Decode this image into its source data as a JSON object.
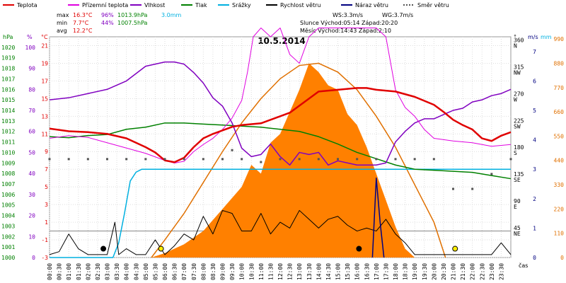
{
  "chart_data": {
    "type": "line",
    "title": "10.5.2014",
    "legend": [
      {
        "label": "Teplota",
        "color": "#e00000"
      },
      {
        "label": "Přízemní teplota",
        "color": "#e000e0"
      },
      {
        "label": "Vlhkost",
        "color": "#8000c0"
      },
      {
        "label": "Tlak",
        "color": "#008000"
      },
      {
        "label": "Srážky",
        "color": "#00b0e0"
      },
      {
        "label": "Rychlost větru",
        "color": "#000000"
      },
      {
        "label": "Náraz větru",
        "color": "#000080"
      },
      {
        "label": "Směr větru",
        "color": "#555555"
      }
    ],
    "stats": {
      "max_label": "max",
      "max_temp": "16.3°C",
      "max_hum": "96%",
      "max_press": "1013.9hPa",
      "rain": "3.0mm",
      "min_label": "min",
      "min_temp": "7.7°C",
      "min_hum": "44%",
      "min_press": "1007.5hPa",
      "avg_label": "avg",
      "avg_temp": "12.2°C",
      "ws": "WS:3.3m/s",
      "wg": "WG:3.7m/s",
      "sun": "Slunce Východ:05:14  Západ:20:20",
      "moon": "Měsíc  Východ:14:43  Západ:2:10"
    },
    "axes": {
      "hpa_label": "hPa",
      "pct_label": "%",
      "temp_label": "°C",
      "deg_label": "°",
      "ms_label": "m/s",
      "mm_label": "mm",
      "time_label": "čas",
      "hpa_ticks": [
        "1000",
        "1001",
        "1002",
        "1003",
        "1004",
        "1005",
        "1006",
        "1007",
        "1008",
        "1009",
        "1010",
        "1011",
        "1012",
        "1013",
        "1014",
        "1015",
        "1016",
        "1017",
        "1018",
        "1019",
        "1020"
      ],
      "pct_ticks": [
        "0",
        "10",
        "20",
        "30",
        "40",
        "50",
        "60",
        "70",
        "80",
        "90",
        "100"
      ],
      "temp_ticks": [
        "-3",
        "-1",
        "1",
        "3",
        "5",
        "7",
        "9",
        "11",
        "13",
        "15",
        "17",
        "19",
        "21"
      ],
      "dir_ticks": [
        "NE",
        "45",
        "E",
        "90",
        "SE",
        "135",
        "S",
        "180",
        "SW",
        "225",
        "W",
        "270",
        "NW",
        "315",
        "N",
        "360"
      ],
      "ms_ticks": [
        "0",
        "1",
        "2",
        "3",
        "4",
        "5",
        "6",
        "7"
      ],
      "mm_ticks": [
        "0",
        "110",
        "220",
        "330",
        "440",
        "550",
        "660",
        "770",
        "880",
        "990"
      ],
      "time_ticks": [
        "00:00",
        "00:30",
        "01:00",
        "01:30",
        "02:00",
        "02:30",
        "03:00",
        "03:30",
        "04:00",
        "04:30",
        "05:00",
        "05:30",
        "06:00",
        "06:30",
        "07:00",
        "07:30",
        "08:00",
        "08:30",
        "09:00",
        "09:30",
        "10:00",
        "10:30",
        "11:00",
        "11:30",
        "12:00",
        "12:30",
        "13:00",
        "13:30",
        "14:00",
        "14:30",
        "15:00",
        "15:30",
        "16:00",
        "16:30",
        "17:00",
        "17:30",
        "18:00",
        "18:30",
        "19:00",
        "19:30",
        "20:00",
        "20:30",
        "21:00",
        "21:30",
        "22:00",
        "22:30",
        "23:00",
        "23:30"
      ],
      "temp_range": [
        -3,
        22
      ],
      "hpa_range": [
        1000,
        1021
      ],
      "pct_range": [
        0,
        105
      ],
      "wind_range_ms": [
        0,
        7.5
      ],
      "solar_range": [
        0,
        1000
      ],
      "dir_range": [
        0,
        370
      ],
      "x_range_hours": [
        0,
        24
      ]
    },
    "temperature": [
      [
        0,
        11.6
      ],
      [
        1,
        11.3
      ],
      [
        2,
        11.2
      ],
      [
        3,
        11.0
      ],
      [
        4,
        10.5
      ],
      [
        5,
        9.5
      ],
      [
        5.5,
        8.9
      ],
      [
        6,
        8.0
      ],
      [
        6.5,
        7.8
      ],
      [
        7,
        8.3
      ],
      [
        7.5,
        9.5
      ],
      [
        8,
        10.5
      ],
      [
        8.5,
        11.0
      ],
      [
        9,
        11.4
      ],
      [
        9.5,
        11.8
      ],
      [
        10,
        12.0
      ],
      [
        10.5,
        12.1
      ],
      [
        11,
        12.2
      ],
      [
        11.5,
        12.6
      ],
      [
        12,
        13.0
      ],
      [
        12.5,
        13.4
      ],
      [
        13,
        14.2
      ],
      [
        13.5,
        15.0
      ],
      [
        14,
        15.8
      ],
      [
        15,
        16.0
      ],
      [
        16,
        16.2
      ],
      [
        16.5,
        16.2
      ],
      [
        17,
        16.0
      ],
      [
        18,
        15.8
      ],
      [
        19,
        15.2
      ],
      [
        20,
        14.3
      ],
      [
        20.5,
        13.5
      ],
      [
        21,
        12.6
      ],
      [
        21.5,
        12.0
      ],
      [
        22,
        11.5
      ],
      [
        22.5,
        10.5
      ],
      [
        23,
        10.2
      ],
      [
        23.5,
        10.8
      ],
      [
        24,
        11.2
      ]
    ],
    "ground_temperature": [
      [
        0,
        10.5
      ],
      [
        1,
        10.8
      ],
      [
        2,
        10.6
      ],
      [
        3,
        10.0
      ],
      [
        4,
        9.4
      ],
      [
        5,
        8.8
      ],
      [
        6,
        8.0
      ],
      [
        6.5,
        7.7
      ],
      [
        7,
        7.9
      ],
      [
        7.5,
        9.0
      ],
      [
        8,
        9.8
      ],
      [
        8.5,
        10.5
      ],
      [
        9,
        11.5
      ],
      [
        9.5,
        12.8
      ],
      [
        10,
        14.8
      ],
      [
        10.3,
        18
      ],
      [
        10.6,
        22
      ],
      [
        11,
        23
      ],
      [
        11.5,
        22
      ],
      [
        12,
        23
      ],
      [
        12.5,
        20
      ],
      [
        13,
        19
      ],
      [
        13.5,
        22
      ],
      [
        14,
        23
      ],
      [
        15,
        23
      ],
      [
        16,
        23
      ],
      [
        17,
        23
      ],
      [
        17.5,
        22
      ],
      [
        18,
        16
      ],
      [
        18.5,
        14
      ],
      [
        19,
        13
      ],
      [
        19.5,
        11.5
      ],
      [
        20,
        10.5
      ],
      [
        21,
        10.2
      ],
      [
        22,
        10.0
      ],
      [
        23,
        9.6
      ],
      [
        24,
        9.8
      ]
    ],
    "humidity": [
      [
        0,
        75
      ],
      [
        1,
        76
      ],
      [
        2,
        78
      ],
      [
        3,
        80
      ],
      [
        4,
        84
      ],
      [
        5,
        91
      ],
      [
        6,
        93
      ],
      [
        6.5,
        93
      ],
      [
        7,
        92
      ],
      [
        7.5,
        88
      ],
      [
        8,
        83
      ],
      [
        8.5,
        76
      ],
      [
        9,
        72
      ],
      [
        9.5,
        64
      ],
      [
        10,
        52
      ],
      [
        10.5,
        48
      ],
      [
        11,
        49
      ],
      [
        11.5,
        54
      ],
      [
        12,
        48
      ],
      [
        12.5,
        44
      ],
      [
        13,
        50
      ],
      [
        13.5,
        49
      ],
      [
        14,
        50
      ],
      [
        14.5,
        44
      ],
      [
        15,
        46
      ],
      [
        16,
        44
      ],
      [
        17,
        44
      ],
      [
        17.5,
        45
      ],
      [
        18,
        55
      ],
      [
        18.5,
        60
      ],
      [
        19,
        64
      ],
      [
        19.5,
        66
      ],
      [
        20,
        66
      ],
      [
        20.5,
        68
      ],
      [
        21,
        70
      ],
      [
        21.5,
        71
      ],
      [
        22,
        74
      ],
      [
        22.5,
        75
      ],
      [
        23,
        77
      ],
      [
        23.5,
        78
      ],
      [
        24,
        80
      ]
    ],
    "pressure": [
      [
        0,
        1011.5
      ],
      [
        1,
        1011.4
      ],
      [
        2,
        1011.6
      ],
      [
        3,
        1011.7
      ],
      [
        4,
        1012.2
      ],
      [
        5,
        1012.4
      ],
      [
        6,
        1012.8
      ],
      [
        7,
        1012.8
      ],
      [
        8,
        1012.7
      ],
      [
        9,
        1012.6
      ],
      [
        10,
        1012.5
      ],
      [
        11,
        1012.4
      ],
      [
        12,
        1012.2
      ],
      [
        13,
        1012.0
      ],
      [
        14,
        1011.5
      ],
      [
        15,
        1010.8
      ],
      [
        16,
        1010.0
      ],
      [
        17,
        1009.4
      ],
      [
        18,
        1008.8
      ],
      [
        19,
        1008.4
      ],
      [
        20,
        1008.3
      ],
      [
        21,
        1008.2
      ],
      [
        22,
        1008.1
      ],
      [
        23,
        1007.8
      ],
      [
        24,
        1007.5
      ]
    ],
    "rain_cumulative_mm": [
      [
        0,
        0
      ],
      [
        3.3,
        0
      ],
      [
        3.6,
        0.5
      ],
      [
        3.9,
        1.5
      ],
      [
        4.2,
        2.6
      ],
      [
        4.5,
        2.9
      ],
      [
        4.8,
        3.0
      ],
      [
        21,
        3.0
      ],
      [
        22,
        3.0
      ],
      [
        23,
        3.0
      ],
      [
        23.6,
        3.0
      ],
      [
        24,
        3.0
      ]
    ],
    "wind_speed": [
      [
        0,
        0.1
      ],
      [
        0.5,
        0.2
      ],
      [
        1,
        0.8
      ],
      [
        1.5,
        0.3
      ],
      [
        2,
        0.1
      ],
      [
        3,
        0.1
      ],
      [
        3.4,
        1.2
      ],
      [
        3.6,
        0.1
      ],
      [
        4,
        0.3
      ],
      [
        4.5,
        0.1
      ],
      [
        5,
        0.1
      ],
      [
        5.5,
        0.6
      ],
      [
        6,
        0.1
      ],
      [
        6.5,
        0.4
      ],
      [
        7,
        0.8
      ],
      [
        7.5,
        0.6
      ],
      [
        8,
        1.4
      ],
      [
        8.5,
        0.8
      ],
      [
        9,
        1.6
      ],
      [
        9.5,
        1.5
      ],
      [
        10,
        0.9
      ],
      [
        10.5,
        0.9
      ],
      [
        11,
        1.5
      ],
      [
        11.5,
        0.8
      ],
      [
        12,
        1.2
      ],
      [
        12.5,
        1.0
      ],
      [
        13,
        1.6
      ],
      [
        13.5,
        1.3
      ],
      [
        14,
        1.0
      ],
      [
        14.5,
        1.3
      ],
      [
        15,
        1.4
      ],
      [
        15.5,
        1.1
      ],
      [
        16,
        0.9
      ],
      [
        16.5,
        1.0
      ],
      [
        17,
        0.9
      ],
      [
        17.5,
        1.3
      ],
      [
        18,
        0.8
      ],
      [
        18.5,
        0.5
      ],
      [
        19,
        0.1
      ],
      [
        20,
        0.1
      ],
      [
        21,
        0.1
      ],
      [
        22,
        0.1
      ],
      [
        23,
        0.1
      ],
      [
        23.5,
        0.5
      ],
      [
        24,
        0.1
      ]
    ],
    "wind_gust": [
      [
        16.8,
        0
      ],
      [
        17.0,
        2.7
      ],
      [
        17.2,
        1.2
      ],
      [
        17.4,
        0
      ]
    ],
    "solar_radiation": [
      [
        5.3,
        0
      ],
      [
        6,
        20
      ],
      [
        7,
        60
      ],
      [
        8,
        120
      ],
      [
        9,
        220
      ],
      [
        10,
        320
      ],
      [
        10.5,
        420
      ],
      [
        11,
        380
      ],
      [
        11.5,
        520
      ],
      [
        12,
        560
      ],
      [
        12.5,
        660
      ],
      [
        13,
        760
      ],
      [
        13.5,
        880
      ],
      [
        14,
        840
      ],
      [
        14.5,
        780
      ],
      [
        15,
        760
      ],
      [
        15.5,
        650
      ],
      [
        16,
        600
      ],
      [
        16.5,
        500
      ],
      [
        17,
        380
      ],
      [
        17.5,
        260
      ],
      [
        18,
        140
      ],
      [
        18.5,
        40
      ],
      [
        19,
        0
      ]
    ],
    "solar_theoretical": [
      [
        5.3,
        0
      ],
      [
        6,
        80
      ],
      [
        7,
        200
      ],
      [
        8,
        340
      ],
      [
        9,
        480
      ],
      [
        10,
        610
      ],
      [
        11,
        720
      ],
      [
        12,
        810
      ],
      [
        13,
        870
      ],
      [
        14,
        880
      ],
      [
        15,
        840
      ],
      [
        16,
        760
      ],
      [
        17,
        640
      ],
      [
        18,
        500
      ],
      [
        19,
        330
      ],
      [
        20,
        160
      ],
      [
        20.6,
        0
      ]
    ],
    "wind_direction_deg": [
      [
        0,
        165
      ],
      [
        1,
        165
      ],
      [
        2,
        165
      ],
      [
        3,
        165
      ],
      [
        4,
        165
      ],
      [
        5,
        165
      ],
      [
        6,
        165
      ],
      [
        7,
        165
      ],
      [
        8,
        165
      ],
      [
        9,
        165
      ],
      [
        9.5,
        180
      ],
      [
        10,
        165
      ],
      [
        11,
        160
      ],
      [
        12,
        165
      ],
      [
        13,
        165
      ],
      [
        14,
        165
      ],
      [
        15,
        165
      ],
      [
        16,
        165
      ],
      [
        17,
        165
      ],
      [
        18,
        165
      ],
      [
        19,
        165
      ],
      [
        20,
        165
      ],
      [
        21,
        115
      ],
      [
        22,
        115
      ],
      [
        23,
        140
      ],
      [
        24,
        165
      ]
    ],
    "markers": [
      {
        "time": 2.8,
        "type": "black-dot"
      },
      {
        "time": 5.8,
        "type": "yellow-dot"
      },
      {
        "time": 16.1,
        "type": "black-dot"
      },
      {
        "time": 21.1,
        "type": "yellow-dot"
      }
    ],
    "grid": true
  }
}
